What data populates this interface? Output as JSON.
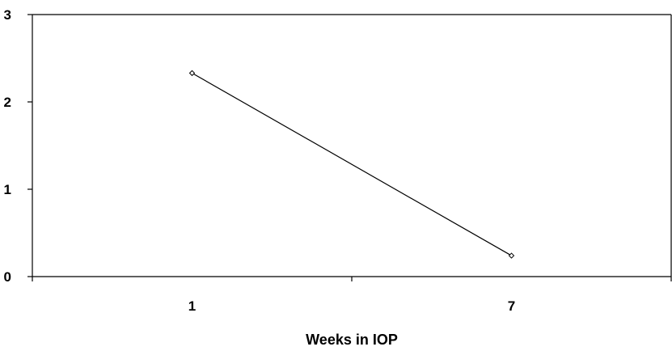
{
  "chart_data": {
    "type": "line",
    "title": "",
    "xlabel": "Weeks in IOP",
    "ylabel": "",
    "categories": [
      "1",
      "7"
    ],
    "series": [
      {
        "values": [
          2.33,
          0.24
        ],
        "color": "#000000",
        "marker": "diamond-open"
      }
    ],
    "ylim": [
      0,
      3
    ],
    "yticks": [
      "0",
      "1",
      "2",
      "3"
    ],
    "grid": false,
    "legend": "none",
    "plot_border": "top-right"
  }
}
